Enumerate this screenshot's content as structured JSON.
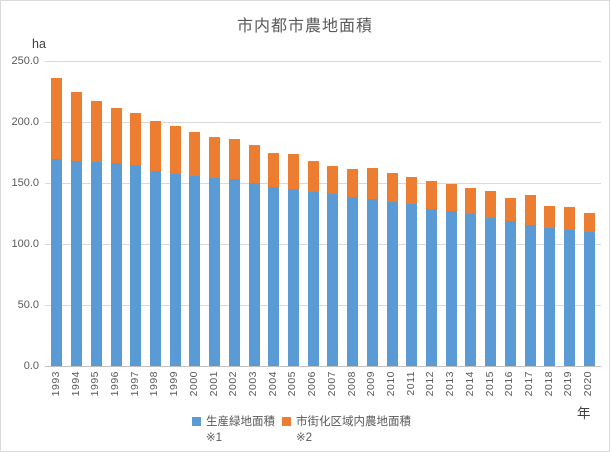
{
  "chart_data": {
    "type": "bar",
    "stacked": true,
    "title": "市内都市農地面積",
    "ylabel": "ha",
    "xlabel": "年",
    "categories": [
      "1993",
      "1994",
      "1995",
      "1996",
      "1997",
      "1998",
      "1999",
      "2000",
      "2001",
      "2002",
      "2003",
      "2004",
      "2005",
      "2006",
      "2007",
      "2008",
      "2009",
      "2010",
      "2011",
      "2012",
      "2013",
      "2014",
      "2015",
      "2016",
      "2017",
      "2018",
      "2019",
      "2020"
    ],
    "series": [
      {
        "name": "生産緑地面積",
        "note": "※1",
        "color": "#5B9BD5",
        "values": [
          170.0,
          168.0,
          167.0,
          166.0,
          165.0,
          160.0,
          157.5,
          156.0,
          154.0,
          153.0,
          150.0,
          146.5,
          145.0,
          143.0,
          141.0,
          138.5,
          137.0,
          134.5,
          133.0,
          129.0,
          127.0,
          124.5,
          121.5,
          118.5,
          115.5,
          113.0,
          111.5,
          110.0
        ]
      },
      {
        "name": "市街化区域内農地面積",
        "note": "※2",
        "color": "#ED7D31",
        "values": [
          66.0,
          56.5,
          50.5,
          45.5,
          42.0,
          41.0,
          39.0,
          36.0,
          34.0,
          33.0,
          31.0,
          28.0,
          28.5,
          25.0,
          23.0,
          23.0,
          25.0,
          23.5,
          22.0,
          22.5,
          22.0,
          21.5,
          22.0,
          19.5,
          24.5,
          18.0,
          18.5,
          15.5
        ]
      }
    ],
    "ylim": [
      0,
      250
    ],
    "ytick_interval": 50,
    "ytick_labels": [
      "0.0",
      "50.0",
      "100.0",
      "150.0",
      "200.0",
      "250.0"
    ],
    "grid": true,
    "legend_position": "bottom",
    "colors": {
      "grid": "#D9D9D9",
      "axis": "#BFBFBF",
      "text": "#595959"
    }
  }
}
